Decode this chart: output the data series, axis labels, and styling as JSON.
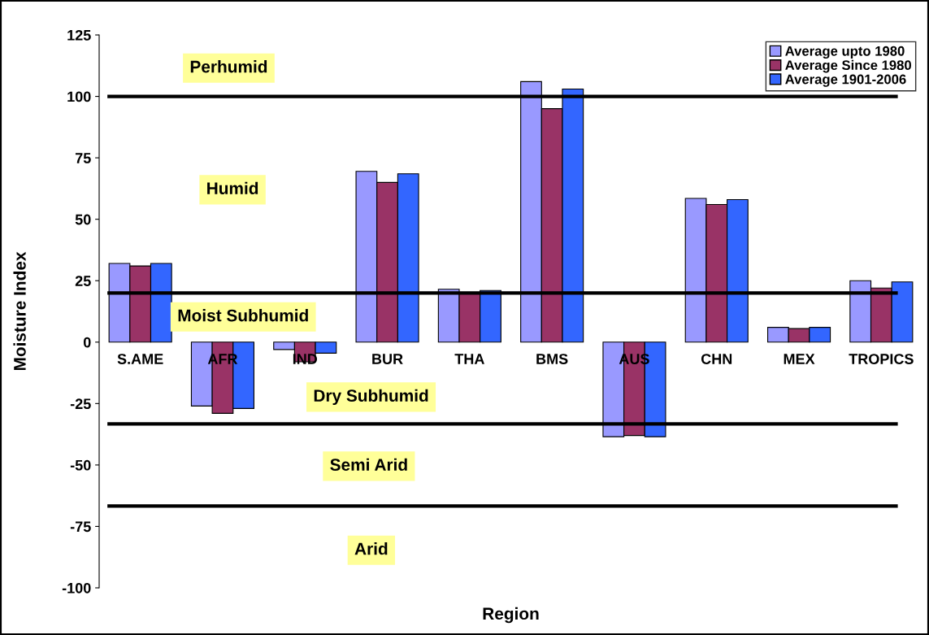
{
  "chart_data": {
    "type": "bar",
    "xlabel": "Region",
    "ylabel": "Moisture Index",
    "categories": [
      "S.AME",
      "AFR",
      "IND",
      "BUR",
      "THA",
      "BMS",
      "AUS",
      "CHN",
      "MEX",
      "TROPICS"
    ],
    "series": [
      {
        "name": "Average upto 1980",
        "color": "#9999ff",
        "values": [
          32,
          -26,
          -3,
          69.5,
          21.5,
          106,
          -38.5,
          58.5,
          6,
          25
        ]
      },
      {
        "name": "Average Since 1980",
        "color": "#993366",
        "values": [
          31,
          -29,
          -8,
          65,
          20,
          95,
          -38,
          56,
          5.5,
          22
        ]
      },
      {
        "name": "Average 1901-2006",
        "color": "#3366ff",
        "values": [
          32,
          -27,
          -4.5,
          68.5,
          21,
          103,
          -38.5,
          58,
          6,
          24.5
        ]
      }
    ],
    "ylim": [
      -100,
      125
    ],
    "yticks": [
      -100,
      -75,
      -50,
      -25,
      0,
      25,
      50,
      75,
      100,
      125
    ],
    "ref_lines": [
      {
        "axis": "y",
        "value": 100,
        "color": "#000000"
      },
      {
        "axis": "y",
        "value": 20,
        "color": "#000000"
      },
      {
        "axis": "y",
        "value": -33.3,
        "color": "#000000"
      },
      {
        "axis": "y",
        "value": -66.7,
        "color": "#000000"
      }
    ],
    "annotations": [
      "Perhumid",
      "Humid",
      "Moist Subhumid",
      "Dry Subhumid",
      "Semi Arid",
      "Arid"
    ],
    "legend": "top right",
    "grid": false
  }
}
